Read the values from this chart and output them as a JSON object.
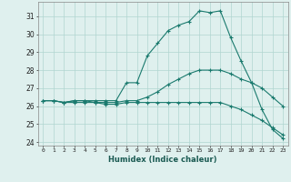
{
  "xlabel": "Humidex (Indice chaleur)",
  "background_color": "#dff0ee",
  "grid_color": "#b0d5d0",
  "line_color": "#1a7a6e",
  "xlim": [
    -0.5,
    23.5
  ],
  "ylim": [
    23.8,
    31.8
  ],
  "yticks": [
    24,
    25,
    26,
    27,
    28,
    29,
    30,
    31
  ],
  "xticks": [
    0,
    1,
    2,
    3,
    4,
    5,
    6,
    7,
    8,
    9,
    10,
    11,
    12,
    13,
    14,
    15,
    16,
    17,
    18,
    19,
    20,
    21,
    22,
    23
  ],
  "line1_x": [
    0,
    1,
    2,
    3,
    4,
    5,
    6,
    7,
    8,
    9,
    10,
    11,
    12,
    13,
    14,
    15,
    16,
    17,
    18,
    19,
    20,
    21,
    22,
    23
  ],
  "line1_y": [
    26.3,
    26.3,
    26.2,
    26.3,
    26.3,
    26.3,
    26.3,
    26.3,
    27.3,
    27.3,
    28.8,
    29.5,
    30.2,
    30.5,
    30.7,
    31.3,
    31.2,
    31.3,
    29.8,
    28.5,
    27.3,
    25.8,
    24.7,
    24.2
  ],
  "line2_x": [
    0,
    1,
    2,
    3,
    4,
    5,
    6,
    7,
    8,
    9,
    10,
    11,
    12,
    13,
    14,
    15,
    16,
    17,
    18,
    19,
    20,
    21,
    22,
    23
  ],
  "line2_y": [
    26.3,
    26.3,
    26.2,
    26.3,
    26.3,
    26.2,
    26.2,
    26.2,
    26.3,
    26.3,
    26.5,
    26.8,
    27.2,
    27.5,
    27.8,
    28.0,
    28.0,
    28.0,
    27.8,
    27.5,
    27.3,
    27.0,
    26.5,
    26.0
  ],
  "line3_x": [
    0,
    1,
    2,
    3,
    4,
    5,
    6,
    7,
    8,
    9,
    10,
    11,
    12,
    13,
    14,
    15,
    16,
    17,
    18,
    19,
    20,
    21,
    22,
    23
  ],
  "line3_y": [
    26.3,
    26.3,
    26.2,
    26.2,
    26.2,
    26.2,
    26.1,
    26.1,
    26.2,
    26.2,
    26.2,
    26.2,
    26.2,
    26.2,
    26.2,
    26.2,
    26.2,
    26.2,
    26.0,
    25.8,
    25.5,
    25.2,
    24.8,
    24.4
  ]
}
